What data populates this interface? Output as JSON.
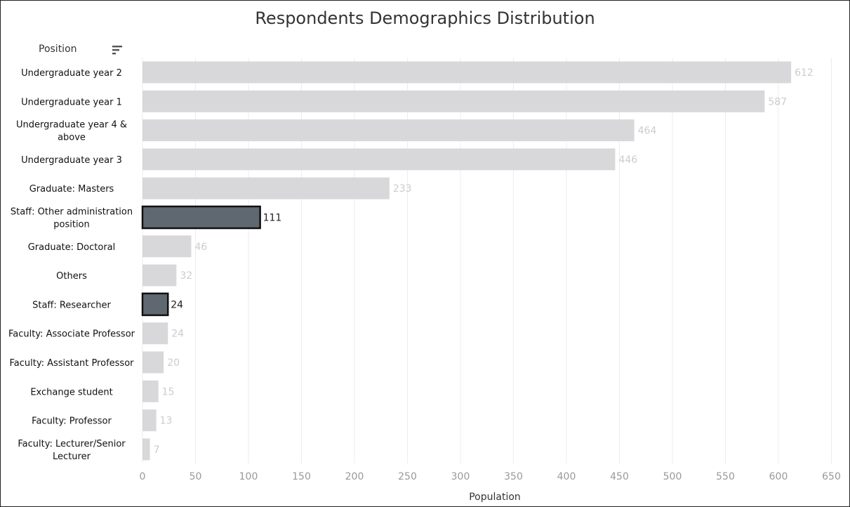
{
  "chart_data": {
    "type": "bar",
    "orientation": "horizontal",
    "title": "Respondents Demographics Distribution",
    "category_header": "Position",
    "xlabel": "Population",
    "xlim": [
      0,
      650
    ],
    "xticks": [
      0,
      50,
      100,
      150,
      200,
      250,
      300,
      350,
      400,
      450,
      500,
      550,
      600,
      650
    ],
    "grid": true,
    "colors": {
      "default": "#d8d8da",
      "highlight": "#5f6870",
      "highlight_border": "#111111",
      "default_label": "#cccccc",
      "highlight_label": "#222222"
    },
    "bars": [
      {
        "label": [
          "Undergraduate year 2"
        ],
        "value": 612,
        "highlight": false
      },
      {
        "label": [
          "Undergraduate year 1"
        ],
        "value": 587,
        "highlight": false
      },
      {
        "label": [
          "Undergraduate year 4 &",
          "above"
        ],
        "value": 464,
        "highlight": false
      },
      {
        "label": [
          "Undergraduate year 3"
        ],
        "value": 446,
        "highlight": false
      },
      {
        "label": [
          "Graduate: Masters"
        ],
        "value": 233,
        "highlight": false
      },
      {
        "label": [
          "Staff: Other administration",
          "position"
        ],
        "value": 111,
        "highlight": true
      },
      {
        "label": [
          "Graduate: Doctoral"
        ],
        "value": 46,
        "highlight": false
      },
      {
        "label": [
          "Others"
        ],
        "value": 32,
        "highlight": false
      },
      {
        "label": [
          "Staff: Researcher"
        ],
        "value": 24,
        "highlight": true
      },
      {
        "label": [
          "Faculty: Associate Professor"
        ],
        "value": 24,
        "highlight": false
      },
      {
        "label": [
          "Faculty: Assistant Professor"
        ],
        "value": 20,
        "highlight": false
      },
      {
        "label": [
          "Exchange student"
        ],
        "value": 15,
        "highlight": false
      },
      {
        "label": [
          "Faculty: Professor"
        ],
        "value": 13,
        "highlight": false
      },
      {
        "label": [
          "Faculty: Lecturer/Senior",
          "Lecturer"
        ],
        "value": 7,
        "highlight": false
      }
    ]
  },
  "icons": {
    "sort": "sort-descending-icon"
  }
}
